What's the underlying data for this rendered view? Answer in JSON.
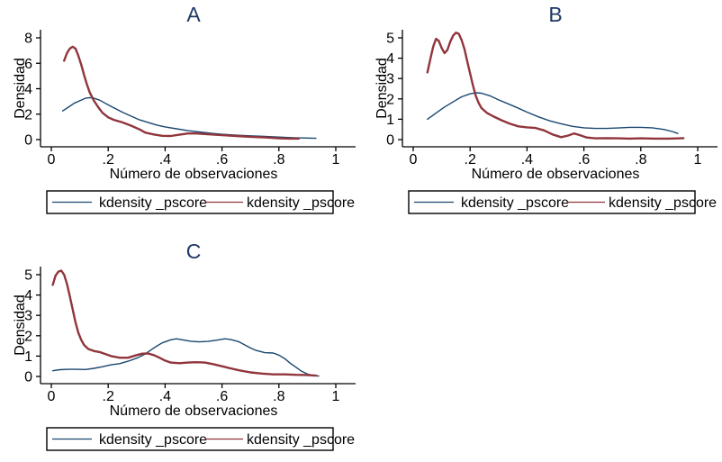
{
  "colors": {
    "title_text": "#1f3864",
    "axis": "#000000",
    "blue_line": "#1a476f",
    "maroon_line": "#90353b",
    "background": "#ffffff"
  },
  "chart_data": {
    "type": "line",
    "description": "Three Stata-style kernel density panels (A, B, C), each comparing two propensity-score densities",
    "grid": false,
    "legend_position": "below",
    "panels": [
      {
        "title": "A",
        "xlabel": "Número de observaciones",
        "ylabel": "Densidad",
        "xlim": [
          0,
          1
        ],
        "ylim": [
          0,
          8
        ],
        "xticks": [
          "0",
          ".2",
          ".4",
          ".6",
          ".8",
          "1"
        ],
        "xtick_values": [
          0,
          0.2,
          0.4,
          0.6,
          0.8,
          1
        ],
        "yticks": [
          "0",
          "2",
          "4",
          "6",
          "8"
        ],
        "ytick_values": [
          0,
          2,
          4,
          6,
          8
        ],
        "legend": [
          {
            "label": "kdensity _pscore",
            "color": "#1a476f"
          },
          {
            "label": "kdensity _pscore",
            "color": "#90353b"
          }
        ],
        "series": [
          {
            "name": "kdensity _pscore",
            "color": "#1a476f",
            "width": 1.4,
            "points": [
              [
                0.04,
                2.25
              ],
              [
                0.06,
                2.55
              ],
              [
                0.08,
                2.85
              ],
              [
                0.1,
                3.05
              ],
              [
                0.12,
                3.25
              ],
              [
                0.135,
                3.3
              ],
              [
                0.15,
                3.25
              ],
              [
                0.17,
                3.1
              ],
              [
                0.19,
                2.85
              ],
              [
                0.22,
                2.5
              ],
              [
                0.25,
                2.15
              ],
              [
                0.28,
                1.85
              ],
              [
                0.31,
                1.55
              ],
              [
                0.34,
                1.35
              ],
              [
                0.37,
                1.15
              ],
              [
                0.4,
                1.0
              ],
              [
                0.44,
                0.85
              ],
              [
                0.48,
                0.7
              ],
              [
                0.52,
                0.6
              ],
              [
                0.56,
                0.5
              ],
              [
                0.6,
                0.42
              ],
              [
                0.65,
                0.35
              ],
              [
                0.7,
                0.3
              ],
              [
                0.75,
                0.25
              ],
              [
                0.8,
                0.2
              ],
              [
                0.85,
                0.15
              ],
              [
                0.9,
                0.12
              ],
              [
                0.93,
                0.1
              ]
            ]
          },
          {
            "name": "kdensity _pscore",
            "color": "#90353b",
            "width": 2.4,
            "points": [
              [
                0.045,
                6.2
              ],
              [
                0.055,
                6.8
              ],
              [
                0.065,
                7.15
              ],
              [
                0.075,
                7.3
              ],
              [
                0.085,
                7.15
              ],
              [
                0.095,
                6.6
              ],
              [
                0.105,
                5.9
              ],
              [
                0.115,
                5.1
              ],
              [
                0.125,
                4.35
              ],
              [
                0.135,
                3.7
              ],
              [
                0.15,
                3.05
              ],
              [
                0.165,
                2.55
              ],
              [
                0.18,
                2.1
              ],
              [
                0.2,
                1.75
              ],
              [
                0.22,
                1.55
              ],
              [
                0.25,
                1.35
              ],
              [
                0.28,
                1.1
              ],
              [
                0.31,
                0.8
              ],
              [
                0.33,
                0.55
              ],
              [
                0.36,
                0.4
              ],
              [
                0.39,
                0.3
              ],
              [
                0.42,
                0.28
              ],
              [
                0.45,
                0.38
              ],
              [
                0.48,
                0.48
              ],
              [
                0.51,
                0.48
              ],
              [
                0.55,
                0.42
              ],
              [
                0.6,
                0.35
              ],
              [
                0.65,
                0.28
              ],
              [
                0.7,
                0.22
              ],
              [
                0.75,
                0.17
              ],
              [
                0.8,
                0.1
              ],
              [
                0.84,
                0.08
              ],
              [
                0.87,
                0.08
              ]
            ]
          }
        ]
      },
      {
        "title": "B",
        "xlabel": "Número de observaciones",
        "ylabel": "Densidad",
        "xlim": [
          0,
          1
        ],
        "ylim": [
          0,
          5.6
        ],
        "xticks": [
          "0",
          ".2",
          ".4",
          ".6",
          ".8",
          "1"
        ],
        "xtick_values": [
          0,
          0.2,
          0.4,
          0.6,
          0.8,
          1
        ],
        "yticks": [
          "0",
          "1",
          "2",
          "3",
          "4",
          "5"
        ],
        "ytick_values": [
          0,
          1,
          2,
          3,
          4,
          5
        ],
        "legend": [
          {
            "label": "kdensity _pscore",
            "color": "#1a476f"
          },
          {
            "label": "kdensity _pscore",
            "color": "#90353b"
          }
        ],
        "series": [
          {
            "name": "kdensity _pscore",
            "color": "#1a476f",
            "width": 1.4,
            "points": [
              [
                0.05,
                1.0
              ],
              [
                0.08,
                1.3
              ],
              [
                0.11,
                1.6
              ],
              [
                0.14,
                1.85
              ],
              [
                0.17,
                2.1
              ],
              [
                0.2,
                2.25
              ],
              [
                0.22,
                2.3
              ],
              [
                0.24,
                2.28
              ],
              [
                0.27,
                2.15
              ],
              [
                0.3,
                1.95
              ],
              [
                0.33,
                1.78
              ],
              [
                0.36,
                1.6
              ],
              [
                0.4,
                1.35
              ],
              [
                0.44,
                1.12
              ],
              [
                0.48,
                0.92
              ],
              [
                0.52,
                0.78
              ],
              [
                0.56,
                0.65
              ],
              [
                0.6,
                0.58
              ],
              [
                0.64,
                0.55
              ],
              [
                0.68,
                0.55
              ],
              [
                0.72,
                0.57
              ],
              [
                0.76,
                0.6
              ],
              [
                0.8,
                0.6
              ],
              [
                0.84,
                0.58
              ],
              [
                0.88,
                0.5
              ],
              [
                0.91,
                0.4
              ],
              [
                0.93,
                0.3
              ]
            ]
          },
          {
            "name": "kdensity _pscore",
            "color": "#90353b",
            "width": 2.4,
            "points": [
              [
                0.05,
                3.3
              ],
              [
                0.06,
                3.95
              ],
              [
                0.07,
                4.55
              ],
              [
                0.08,
                4.95
              ],
              [
                0.09,
                4.85
              ],
              [
                0.1,
                4.5
              ],
              [
                0.11,
                4.25
              ],
              [
                0.12,
                4.4
              ],
              [
                0.13,
                4.8
              ],
              [
                0.14,
                5.1
              ],
              [
                0.15,
                5.25
              ],
              [
                0.16,
                5.2
              ],
              [
                0.17,
                4.9
              ],
              [
                0.18,
                4.45
              ],
              [
                0.19,
                3.85
              ],
              [
                0.2,
                3.25
              ],
              [
                0.21,
                2.65
              ],
              [
                0.22,
                2.15
              ],
              [
                0.23,
                1.8
              ],
              [
                0.24,
                1.55
              ],
              [
                0.26,
                1.3
              ],
              [
                0.28,
                1.15
              ],
              [
                0.31,
                0.95
              ],
              [
                0.34,
                0.78
              ],
              [
                0.37,
                0.65
              ],
              [
                0.4,
                0.6
              ],
              [
                0.43,
                0.57
              ],
              [
                0.46,
                0.45
              ],
              [
                0.49,
                0.25
              ],
              [
                0.52,
                0.12
              ],
              [
                0.545,
                0.2
              ],
              [
                0.565,
                0.3
              ],
              [
                0.585,
                0.22
              ],
              [
                0.61,
                0.1
              ],
              [
                0.64,
                0.06
              ],
              [
                0.68,
                0.07
              ],
              [
                0.72,
                0.06
              ],
              [
                0.76,
                0.05
              ],
              [
                0.8,
                0.06
              ],
              [
                0.85,
                0.05
              ],
              [
                0.9,
                0.05
              ],
              [
                0.95,
                0.07
              ]
            ]
          }
        ]
      },
      {
        "title": "C",
        "xlabel": "Número de observaciones",
        "ylabel": "Densidad",
        "xlim": [
          0,
          1
        ],
        "ylim": [
          0,
          5.6
        ],
        "xticks": [
          "0",
          ".2",
          ".4",
          ".6",
          ".8",
          "1"
        ],
        "xtick_values": [
          0,
          0.2,
          0.4,
          0.6,
          0.8,
          1
        ],
        "yticks": [
          "0",
          "1",
          "2",
          "3",
          "4",
          "5"
        ],
        "ytick_values": [
          0,
          1,
          2,
          3,
          4,
          5
        ],
        "legend": [
          {
            "label": "kdensity _pscore",
            "color": "#1a476f"
          },
          {
            "label": "kdensity _pscore",
            "color": "#90353b"
          }
        ],
        "series": [
          {
            "name": "kdensity _pscore",
            "color": "#1a476f",
            "width": 1.4,
            "points": [
              [
                0.005,
                0.28
              ],
              [
                0.03,
                0.33
              ],
              [
                0.06,
                0.35
              ],
              [
                0.09,
                0.35
              ],
              [
                0.12,
                0.34
              ],
              [
                0.15,
                0.4
              ],
              [
                0.18,
                0.48
              ],
              [
                0.21,
                0.57
              ],
              [
                0.24,
                0.63
              ],
              [
                0.27,
                0.75
              ],
              [
                0.3,
                0.9
              ],
              [
                0.33,
                1.1
              ],
              [
                0.36,
                1.4
              ],
              [
                0.39,
                1.65
              ],
              [
                0.42,
                1.8
              ],
              [
                0.44,
                1.85
              ],
              [
                0.46,
                1.8
              ],
              [
                0.49,
                1.73
              ],
              [
                0.52,
                1.7
              ],
              [
                0.55,
                1.72
              ],
              [
                0.58,
                1.78
              ],
              [
                0.61,
                1.85
              ],
              [
                0.63,
                1.82
              ],
              [
                0.66,
                1.7
              ],
              [
                0.68,
                1.55
              ],
              [
                0.7,
                1.4
              ],
              [
                0.72,
                1.28
              ],
              [
                0.75,
                1.17
              ],
              [
                0.78,
                1.15
              ],
              [
                0.8,
                1.05
              ],
              [
                0.82,
                0.88
              ],
              [
                0.84,
                0.65
              ],
              [
                0.86,
                0.45
              ],
              [
                0.88,
                0.25
              ],
              [
                0.9,
                0.12
              ],
              [
                0.92,
                0.05
              ],
              [
                0.94,
                0.02
              ]
            ]
          },
          {
            "name": "kdensity _pscore",
            "color": "#90353b",
            "width": 2.4,
            "points": [
              [
                0.005,
                4.5
              ],
              [
                0.015,
                4.95
              ],
              [
                0.025,
                5.15
              ],
              [
                0.035,
                5.2
              ],
              [
                0.045,
                5.0
              ],
              [
                0.055,
                4.55
              ],
              [
                0.065,
                3.95
              ],
              [
                0.075,
                3.3
              ],
              [
                0.085,
                2.65
              ],
              [
                0.095,
                2.15
              ],
              [
                0.105,
                1.8
              ],
              [
                0.115,
                1.55
              ],
              [
                0.13,
                1.35
              ],
              [
                0.15,
                1.25
              ],
              [
                0.17,
                1.2
              ],
              [
                0.19,
                1.1
              ],
              [
                0.21,
                1.0
              ],
              [
                0.24,
                0.92
              ],
              [
                0.27,
                0.92
              ],
              [
                0.3,
                1.05
              ],
              [
                0.32,
                1.12
              ],
              [
                0.34,
                1.13
              ],
              [
                0.36,
                1.05
              ],
              [
                0.38,
                0.92
              ],
              [
                0.4,
                0.78
              ],
              [
                0.42,
                0.68
              ],
              [
                0.45,
                0.65
              ],
              [
                0.48,
                0.68
              ],
              [
                0.51,
                0.7
              ],
              [
                0.54,
                0.68
              ],
              [
                0.57,
                0.6
              ],
              [
                0.6,
                0.5
              ],
              [
                0.63,
                0.4
              ],
              [
                0.66,
                0.3
              ],
              [
                0.7,
                0.2
              ],
              [
                0.74,
                0.14
              ],
              [
                0.78,
                0.1
              ],
              [
                0.82,
                0.1
              ],
              [
                0.86,
                0.08
              ],
              [
                0.9,
                0.07
              ],
              [
                0.93,
                0.04
              ]
            ]
          }
        ]
      }
    ]
  }
}
